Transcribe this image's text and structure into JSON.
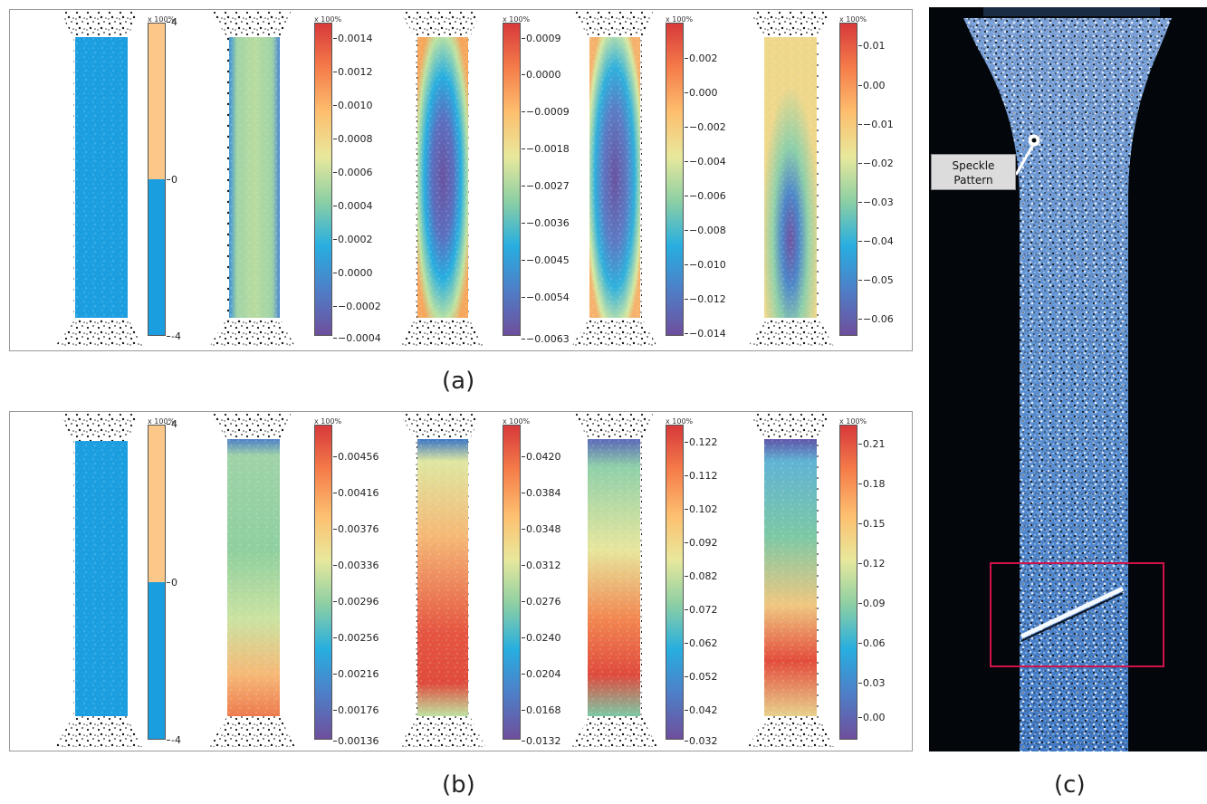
{
  "panel_a": {
    "caption": "(a)",
    "multiplier": "x 100%",
    "colorbars": [
      {
        "type": "binary",
        "ticks": [
          "4",
          "0",
          "-4"
        ]
      },
      {
        "type": "spectral",
        "ticks": [
          "0.0014",
          "0.0012",
          "0.0010",
          "0.0008",
          "0.0006",
          "0.0004",
          "0.0002",
          "0.0000",
          "−0.0002",
          "−0.0004"
        ]
      },
      {
        "type": "spectral",
        "ticks": [
          "0.0009",
          "0.0000",
          "−0.0009",
          "−0.0018",
          "−0.0027",
          "−0.0036",
          "−0.0045",
          "−0.0054",
          "−0.0063"
        ]
      },
      {
        "type": "spectral",
        "ticks": [
          "0.002",
          "0.000",
          "−0.002",
          "−0.004",
          "−0.006",
          "−0.008",
          "−0.010",
          "−0.012",
          "−0.014"
        ]
      },
      {
        "type": "spectral",
        "ticks": [
          "0.01",
          "0.00",
          "−0.01",
          "−0.02",
          "−0.03",
          "−0.04",
          "−0.05",
          "−0.06"
        ]
      }
    ]
  },
  "panel_b": {
    "caption": "(b)",
    "multiplier": "x 100%",
    "colorbars": [
      {
        "type": "binary",
        "ticks": [
          "4",
          "0",
          "-4"
        ]
      },
      {
        "type": "spectral",
        "ticks": [
          "0.00456",
          "0.00416",
          "0.00376",
          "0.00336",
          "0.00296",
          "0.00256",
          "0.00216",
          "0.00176",
          "0.00136"
        ]
      },
      {
        "type": "spectral",
        "ticks": [
          "0.0420",
          "0.0384",
          "0.0348",
          "0.0312",
          "0.0276",
          "0.0240",
          "0.0204",
          "0.0168",
          "0.0132"
        ]
      },
      {
        "type": "spectral",
        "ticks": [
          "0.122",
          "0.112",
          "0.102",
          "0.092",
          "0.082",
          "0.072",
          "0.062",
          "0.052",
          "0.042",
          "0.032"
        ]
      },
      {
        "type": "spectral",
        "ticks": [
          "0.21",
          "0.18",
          "0.15",
          "0.12",
          "0.09",
          "0.06",
          "0.03",
          "0.00"
        ]
      }
    ]
  },
  "panel_c": {
    "caption": "(c)",
    "callout_text": "Speckle Pattern"
  },
  "colors": {
    "uniform_blue": "#1a9ee0",
    "orange": "#fcc88a",
    "highlight_box": "#d0114a",
    "dark_background": "#03070b"
  }
}
